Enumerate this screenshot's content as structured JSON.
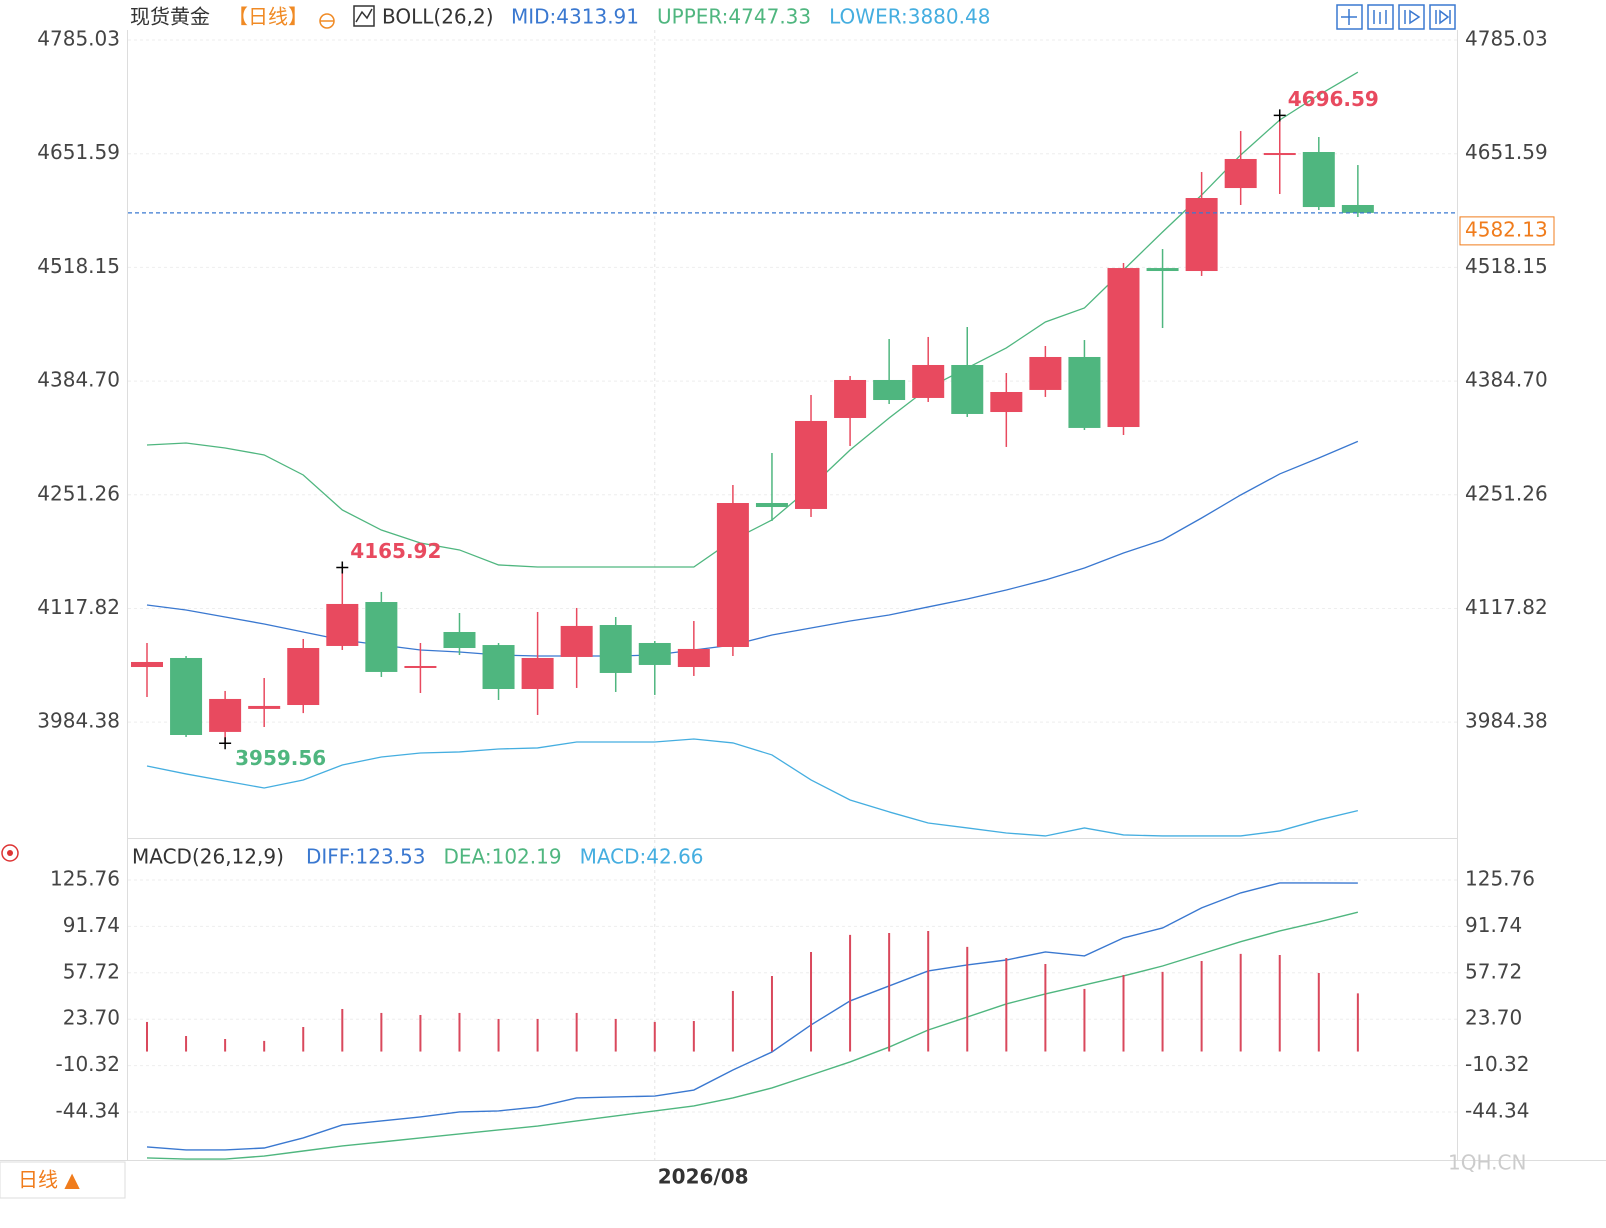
{
  "chart_data": [
    {
      "type": "candlestick",
      "title": "现货黄金",
      "period": "【日线】",
      "indicator": "BOLL(26,2)",
      "categories": [
        null,
        null,
        null,
        null,
        null,
        null,
        null,
        null,
        null,
        null,
        null,
        null,
        null,
        "2026/08",
        null,
        null,
        null,
        null,
        null,
        null,
        null,
        null,
        null,
        null,
        null,
        null,
        null,
        null,
        null,
        null,
        null,
        null
      ],
      "open": [
        4049.1,
        4059.7,
        3972.9,
        3999.9,
        4004.5,
        4073.8,
        4125.4,
        4048.0,
        4090.2,
        4074.9,
        4023.3,
        4060.9,
        4098.4,
        4077.3,
        4049.1,
        4072.6,
        4241.6,
        4234.6,
        4341.4,
        4386.0,
        4364.9,
        4403.6,
        4348.4,
        4374.3,
        4413.0,
        4330.8,
        4517.4,
        4513.9,
        4611.3,
        4650.1,
        4653.6,
        4591.4
      ],
      "high": [
        4077.3,
        4062.0,
        4021.0,
        4036.2,
        4082.0,
        4165.92,
        4137.2,
        4077.3,
        4112.5,
        4077.3,
        4113.7,
        4118.4,
        4107.8,
        4079.6,
        4103.1,
        4262.8,
        4300.3,
        4368.4,
        4390.7,
        4434.1,
        4436.5,
        4448.2,
        4394.2,
        4425.9,
        4432.9,
        4523.3,
        4539.7,
        4630.1,
        4678.2,
        4696.59,
        4671.2,
        4638.3
      ],
      "low": [
        4013.9,
        3967.0,
        3959.56,
        3978.7,
        3995.0,
        4069.1,
        4037.4,
        4018.6,
        4063.2,
        4010.4,
        3992.8,
        4024.5,
        4019.8,
        4016.3,
        4038.6,
        4062.0,
        4220.5,
        4225.2,
        4308.5,
        4357.8,
        4360.2,
        4342.6,
        4307.4,
        4366.1,
        4327.3,
        4321.4,
        4447.0,
        4508.1,
        4591.4,
        4604.3,
        4585.5,
        4577.3
      ],
      "close": [
        4055.0,
        3969.3,
        4011.6,
        4003.4,
        4071.4,
        4123.1,
        4043.3,
        4050.3,
        4071.4,
        4023.3,
        4059.7,
        4097.3,
        4042.1,
        4051.5,
        4070.3,
        4241.6,
        4236.9,
        4337.9,
        4386.0,
        4362.5,
        4403.6,
        4346.1,
        4371.9,
        4413.0,
        4329.7,
        4517.4,
        4513.9,
        4599.6,
        4645.4,
        4652.4,
        4589.0,
        4582.13
      ],
      "up_color": "#e84a5f",
      "down_color": "#4fb67f",
      "price_line_color": "#3a78d0",
      "price_label_color": "#f07c1c",
      "series": [
        {
          "name": "MID:4313.91",
          "color": "#3a78d0",
          "values": [
            4121.9,
            4116.0,
            4107.8,
            4099.6,
            4090.2,
            4080.8,
            4074.9,
            4069.1,
            4066.7,
            4063.2,
            4062.0,
            4062.0,
            4062.0,
            4063.2,
            4069.1,
            4074.9,
            4086.7,
            4094.9,
            4103.1,
            4110.2,
            4119.6,
            4128.9,
            4139.5,
            4151.3,
            4165.3,
            4182.9,
            4198.2,
            4224.0,
            4251.0,
            4275.7,
            4294.4,
            4313.91
          ]
        },
        {
          "name": "UPPER:4747.33",
          "color": "#4fb67f",
          "values": [
            4309.7,
            4312.0,
            4306.2,
            4298.0,
            4274.5,
            4233.4,
            4209.9,
            4194.7,
            4186.5,
            4168.9,
            4166.5,
            4166.5,
            4166.5,
            4166.5,
            4166.5,
            4198.2,
            4221.7,
            4260.4,
            4303.8,
            4341.4,
            4376.6,
            4400.1,
            4423.6,
            4454.1,
            4470.5,
            4515.1,
            4559.7,
            4603.1,
            4650.1,
            4691.2,
            4720.5,
            4747.33
          ]
        },
        {
          "name": "LOWER:3880.48",
          "color": "#45aee0",
          "values": [
            3932.9,
            3923.6,
            3915.3,
            3907.1,
            3916.5,
            3934.1,
            3943.5,
            3948.2,
            3949.4,
            3952.9,
            3954.1,
            3961.1,
            3961.1,
            3961.1,
            3964.6,
            3960.0,
            3945.9,
            3916.5,
            3893.0,
            3879.0,
            3866.0,
            3860.2,
            3854.3,
            3850.8,
            3860.2,
            3852.0,
            3850.8,
            3850.8,
            3850.8,
            3856.7,
            3869.6,
            3880.48
          ]
        }
      ],
      "annotations": [
        {
          "value": 4696.59,
          "color": "#e84a5f"
        },
        {
          "value": 4165.92,
          "color": "#e84a5f"
        },
        {
          "value": 3959.56,
          "color": "#4fb67f"
        }
      ],
      "ylim": [
        3848.4,
        4796.8
      ],
      "yticks": [
        4785.03,
        4651.59,
        4518.15,
        {
          "value": 4384.7,
          "label": "4384.70"
        },
        4251.26,
        4117.82,
        3984.38
      ],
      "grid": true
    },
    {
      "type": "macd",
      "title": "MACD(26,12,9)",
      "series": [
        {
          "name": "DIFF:123.53",
          "color": "#3a78d0",
          "kind": "line",
          "values": [
            -69.9,
            -72.1,
            -72.1,
            -70.7,
            -63.3,
            -53.8,
            -50.9,
            -47.9,
            -44.3,
            -43.5,
            -40.6,
            -34.0,
            -33.3,
            -32.6,
            -28.2,
            -13.5,
            -0.3,
            19.5,
            37.1,
            48.1,
            59.1,
            63.5,
            67.1,
            73.0,
            70.1,
            83.3,
            90.6,
            105.3,
            116.3,
            123.6,
            123.6,
            123.53
          ]
        },
        {
          "name": "DEA:102.19",
          "color": "#4fb67f",
          "kind": "line",
          "values": [
            -78.0,
            -78.8,
            -78.8,
            -76.6,
            -72.9,
            -69.2,
            -66.3,
            -63.3,
            -60.4,
            -57.5,
            -54.6,
            -50.9,
            -47.2,
            -43.5,
            -39.9,
            -34.0,
            -26.7,
            -17.2,
            -7.6,
            3.3,
            15.8,
            25.3,
            34.9,
            42.2,
            48.8,
            55.4,
            62.7,
            71.6,
            80.5,
            88.4,
            95.0,
            102.19
          ]
        },
        {
          "name": "MACD:42.66",
          "color": "#d9485c",
          "label_color": "#45aee0",
          "kind": "bar",
          "values": [
            21.7,
            11.4,
            9.2,
            7.8,
            18.0,
            31.2,
            28.3,
            26.8,
            28.3,
            23.9,
            23.9,
            28.3,
            23.9,
            21.7,
            22.4,
            44.4,
            55.4,
            73.0,
            85.5,
            86.9,
            88.4,
            76.7,
            68.6,
            64.2,
            45.9,
            56.1,
            58.4,
            66.4,
            71.6,
            70.8,
            57.6,
            42.66
          ]
        }
      ],
      "ylim": [
        -79.5,
        151.4
      ],
      "yticks": [
        125.76,
        91.74,
        57.72,
        {
          "value": 23.7,
          "label": "23.70"
        },
        -10.32,
        -44.34
      ],
      "grid": true
    }
  ],
  "ui": {
    "period_button": "日线 ▲",
    "watermark": "1QH.CN"
  }
}
